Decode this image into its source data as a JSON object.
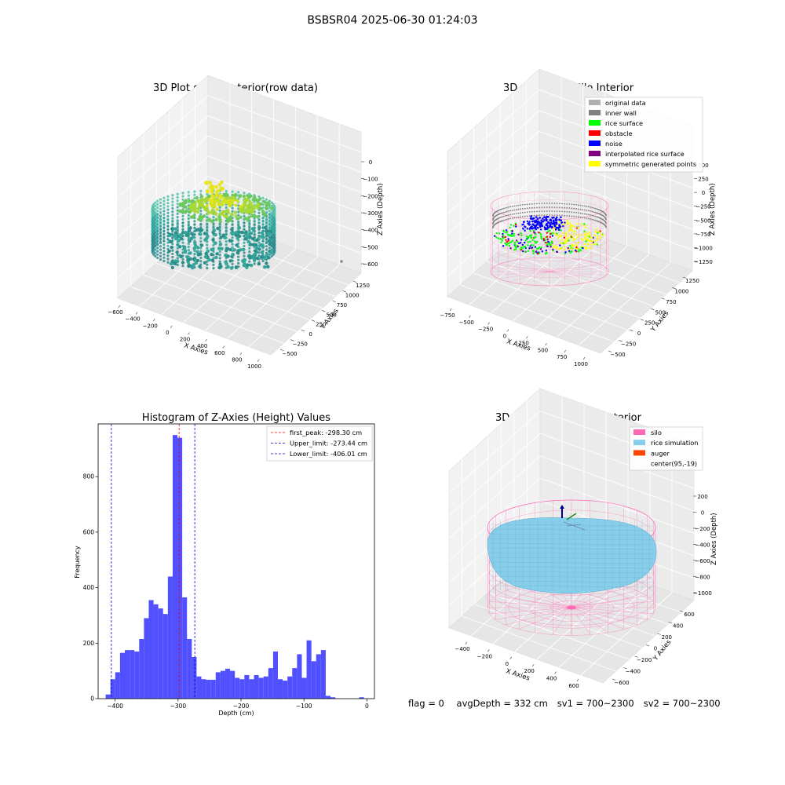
{
  "figure": {
    "suptitle": "BSBSR04 2025-06-30 01:24:03"
  },
  "footer": {
    "flag": "flag = 0",
    "avg_depth": "avgDepth = 332 cm",
    "sv1": "sv1 = 700~2300",
    "sv2": "sv2 = 700~2300"
  },
  "colors": {
    "histogram_bar": "#5050ff",
    "first_peak": "#ff0000",
    "limits": "#0000cc",
    "original_data": "#b0b0b0",
    "inner_wall": "#808080",
    "rice_surface": "#00ff00",
    "obstacle": "#ff0000",
    "noise": "#0000ff",
    "interpolated_rice_surface": "#800080",
    "symmetric_generated_points": "#ffff00",
    "silo": "#ff69b4",
    "rice_simulation": "#87ceeb",
    "auger": "#ff4500"
  },
  "chart_data": [
    {
      "type": "scatter",
      "title": "3D Plot of Silo Interior(row data)",
      "xlabel": "X Axies",
      "ylabel": "Y Axies",
      "zlabel": "Z Axies (Depth)",
      "x_ticks": [
        "−600",
        "−400",
        "−200",
        "0",
        "200",
        "400",
        "600",
        "800",
        "1000"
      ],
      "y_ticks": [
        "−500",
        "−250",
        "0",
        "250",
        "500",
        "750",
        "1000",
        "1250"
      ],
      "z_ticks": [
        "0",
        "−100",
        "−200",
        "−300",
        "−400",
        "−500",
        "−600"
      ]
    },
    {
      "type": "scatter",
      "title": "3D classify of Silo Interior",
      "xlabel": "X Axies",
      "ylabel": "Y Axies",
      "zlabel": "Z Axies (Depth)",
      "x_ticks": [
        "−750",
        "−500",
        "−250",
        "0",
        "250",
        "500",
        "750",
        "1000"
      ],
      "y_ticks": [
        "−500",
        "−250",
        "0",
        "250",
        "500",
        "750",
        "1000",
        "1250"
      ],
      "z_ticks": [
        "500",
        "250",
        "0",
        "−250",
        "−500",
        "−750",
        "−1000",
        "−1250"
      ],
      "legend": [
        "original data",
        "inner wall",
        "rice surface",
        "obstacle",
        "noise",
        "interpolated rice surface",
        "symmetric generated points"
      ],
      "legend_placement": "top-right"
    },
    {
      "type": "bar",
      "title": "Histogram of Z-Axies (Height) Values",
      "xlabel": "Depth (cm)",
      "ylabel": "Frequency",
      "xlim": [
        -427,
        12
      ],
      "ylim": [
        0,
        990
      ],
      "x_ticks": [
        -400,
        -300,
        -200,
        -100,
        0
      ],
      "x_tick_labels": [
        "−400",
        "−300",
        "−200",
        "−100",
        "0"
      ],
      "y_ticks": [
        0,
        200,
        400,
        600,
        800
      ],
      "bin_width": 7.6,
      "bin_starts": [
        -415,
        -407.4,
        -399.8,
        -392.2,
        -384.6,
        -377,
        -369.4,
        -361.8,
        -354.2,
        -346.6,
        -339,
        -331.4,
        -323.8,
        -316.2,
        -308.6,
        -301,
        -293.4,
        -285.8,
        -278.2,
        -270.6,
        -263,
        -255.4,
        -247.8,
        -240.2,
        -232.6,
        -225,
        -217.4,
        -209.8,
        -202.2,
        -194.6,
        -187,
        -179.4,
        -171.8,
        -164.2,
        -156.6,
        -149,
        -141.4,
        -133.8,
        -126.2,
        -118.6,
        -111,
        -103.4,
        -95.8,
        -88.2,
        -80.6,
        -73,
        -65.4,
        -57.8,
        -50.2,
        -42.6,
        -35,
        -27.4,
        -19.8,
        -12.2,
        -4.6
      ],
      "values": [
        15,
        70,
        95,
        165,
        175,
        175,
        170,
        215,
        290,
        355,
        340,
        325,
        305,
        440,
        950,
        940,
        365,
        215,
        150,
        80,
        70,
        68,
        68,
        95,
        100,
        108,
        100,
        75,
        70,
        85,
        70,
        85,
        75,
        80,
        110,
        170,
        70,
        65,
        80,
        110,
        160,
        75,
        210,
        135,
        160,
        175,
        10,
        5,
        0,
        0,
        0,
        0,
        0,
        5,
        0
      ],
      "lines": [
        {
          "name": "first_peak: -298.30 cm",
          "value": -298.3,
          "color": "red"
        },
        {
          "name": "Upper_limit: -273.44 cm",
          "value": -273.44,
          "color": "blue"
        },
        {
          "name": "Lower_limit: -406.01 cm",
          "value": -406.01,
          "color": "blue"
        }
      ],
      "legend_placement": "top-right"
    },
    {
      "type": "scatter",
      "title": "3D simulation of Silo Interior",
      "xlabel": "X Axies",
      "ylabel": "Y Axies",
      "zlabel": "Z Axies (Depth)",
      "x_ticks": [
        "−400",
        "−200",
        "0",
        "200",
        "400",
        "600"
      ],
      "y_ticks": [
        "−600",
        "−400",
        "−200",
        "0",
        "200",
        "400",
        "600"
      ],
      "z_ticks": [
        "200",
        "0",
        "−200",
        "−400",
        "−600",
        "−800",
        "−1000"
      ],
      "legend": [
        "silo",
        "rice simulation",
        "auger",
        "center(95,-19)"
      ],
      "legend_placement": "top-right"
    }
  ]
}
